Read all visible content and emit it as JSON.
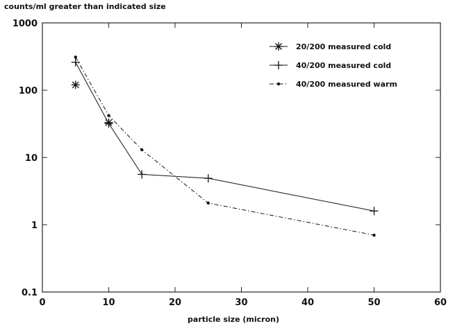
{
  "chart_data": {
    "type": "line",
    "title": "",
    "ylabel": "counts/ml greater than indicated size",
    "xlabel": "particle size (micron)",
    "xlim": [
      0,
      60
    ],
    "ylim": [
      0.1,
      1000
    ],
    "yscale": "log",
    "xticks": [
      0,
      10,
      20,
      30,
      40,
      50,
      60
    ],
    "xtick_labels": [
      "0",
      "10",
      "20",
      "30",
      "40",
      "50",
      "60"
    ],
    "yticks": [
      0.1,
      1,
      10,
      100,
      1000
    ],
    "ytick_labels": [
      "0.1",
      "1",
      "10",
      "100",
      "1000"
    ],
    "grid": false,
    "legend_position": "top-right",
    "series": [
      {
        "name": "20/200 measured cold",
        "marker": "asterisk",
        "line": "none",
        "x": [
          5,
          10
        ],
        "y": [
          120,
          33
        ]
      },
      {
        "name": "40/200 measured cold",
        "marker": "plus",
        "line": "solid",
        "x": [
          5,
          10,
          15,
          25,
          50
        ],
        "y": [
          260,
          32,
          5.6,
          4.9,
          1.6
        ]
      },
      {
        "name": "40/200 measured warm",
        "marker": "dot",
        "line": "dashdot",
        "x": [
          5,
          10,
          15,
          25,
          50
        ],
        "y": [
          310,
          42,
          13,
          2.1,
          0.7
        ]
      }
    ]
  }
}
